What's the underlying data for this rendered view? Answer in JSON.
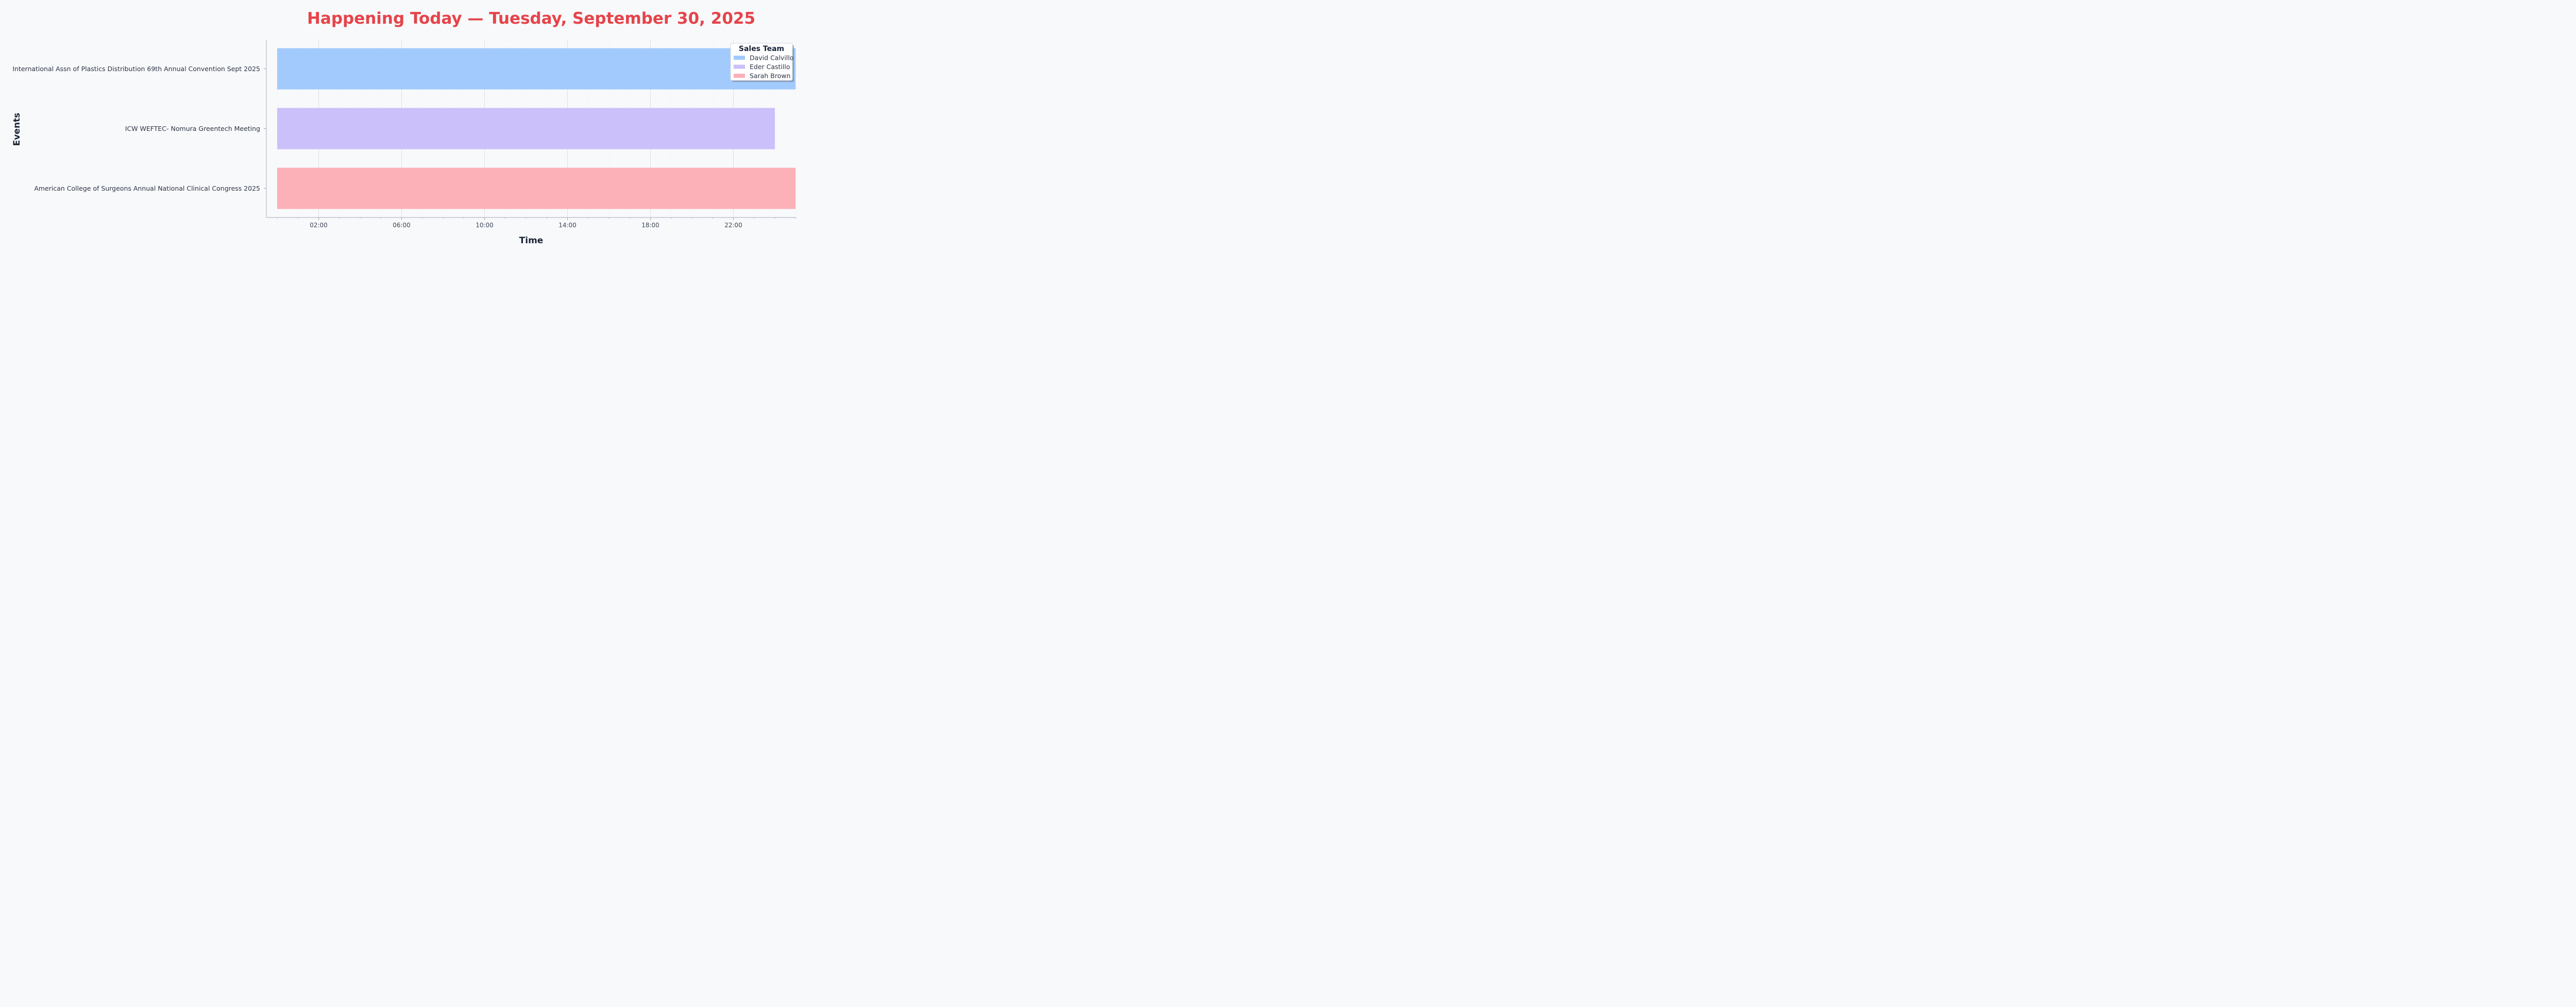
{
  "chart_data": {
    "type": "bar",
    "orientation": "horizontal",
    "chart_style": "gantt",
    "title": "Happening Today — Tuesday, September 30, 2025",
    "title_color": "#e5444a",
    "xlabel": "Time",
    "ylabel": "Events",
    "x_range": [
      "2025-09-30 00:00",
      "2025-10-01 01:00"
    ],
    "x_ticks": [
      "02:00",
      "06:00",
      "10:00",
      "14:00",
      "18:00",
      "22:00"
    ],
    "grid": "vertical",
    "legend": {
      "title": "Sales Team",
      "placement": "top-right",
      "entries": [
        "David Calvillo",
        "Eder Castillo",
        "Sarah Brown"
      ]
    },
    "categories": [
      "International Assn of Plastics Distribution 69th Annual Convention Sept 2025",
      "ICW WEFTEC- Nomura Greentech Meeting",
      "American College of Surgeons Annual National Clinical Congress 2025"
    ],
    "series": [
      {
        "name": "David Calvillo",
        "color": "#a2cafc",
        "event": "International Assn of Plastics Distribution 69th Annual Convention Sept 2025",
        "start": "2025-09-30 00:00",
        "end": "2025-10-01 01:00"
      },
      {
        "name": "Eder Castillo",
        "color": "#cbc0fa",
        "event": "ICW WEFTEC- Nomura Greentech Meeting",
        "start": "2025-09-30 00:00",
        "end": "2025-10-01 00:00"
      },
      {
        "name": "Sarah Brown",
        "color": "#fcb0b8",
        "event": "American College of Surgeons Annual National Clinical Congress 2025",
        "start": "2025-09-30 00:00",
        "end": "2025-10-01 01:00"
      }
    ]
  }
}
